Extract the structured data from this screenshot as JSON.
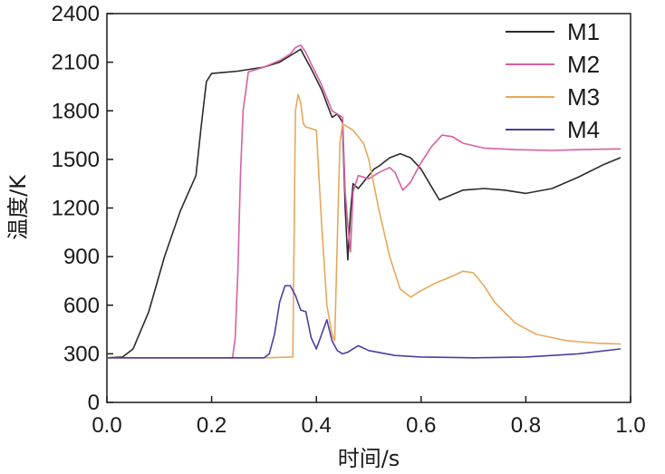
{
  "chart_data": {
    "type": "line",
    "title": "",
    "xlabel": "时间/s",
    "ylabel": "温度/K",
    "xlim": [
      0.0,
      1.0
    ],
    "ylim": [
      0,
      2400
    ],
    "xticks": [
      0.0,
      0.2,
      0.4,
      0.6,
      0.8,
      1.0
    ],
    "xtick_labels": [
      "0.0",
      "0.2",
      "0.4",
      "0.6",
      "0.8",
      "1.0"
    ],
    "yticks": [
      0,
      300,
      600,
      900,
      1200,
      1500,
      1800,
      2100,
      2400
    ],
    "ytick_labels": [
      "0",
      "300",
      "600",
      "900",
      "1200",
      "1500",
      "1800",
      "2100",
      "2400"
    ],
    "grid": false,
    "legend_position": "top-right",
    "series": [
      {
        "name": "M1",
        "color": "#2b2b2b",
        "x": [
          0.0,
          0.03,
          0.05,
          0.08,
          0.11,
          0.14,
          0.17,
          0.18,
          0.19,
          0.2,
          0.25,
          0.3,
          0.33,
          0.35,
          0.37,
          0.38,
          0.39,
          0.41,
          0.43,
          0.44,
          0.45,
          0.455,
          0.46,
          0.465,
          0.47,
          0.48,
          0.49,
          0.5,
          0.51,
          0.52,
          0.54,
          0.56,
          0.58,
          0.6,
          0.62,
          0.635,
          0.65,
          0.68,
          0.72,
          0.76,
          0.8,
          0.85,
          0.9,
          0.95,
          0.98
        ],
        "y": [
          275,
          280,
          330,
          560,
          900,
          1180,
          1400,
          1700,
          1980,
          2030,
          2045,
          2070,
          2100,
          2140,
          2180,
          2120,
          2060,
          1930,
          1760,
          1780,
          1730,
          1200,
          880,
          1170,
          1350,
          1320,
          1360,
          1400,
          1440,
          1460,
          1510,
          1535,
          1510,
          1440,
          1330,
          1250,
          1270,
          1310,
          1320,
          1310,
          1290,
          1320,
          1390,
          1470,
          1510
        ]
      },
      {
        "name": "M2",
        "color": "#d95fa0",
        "x": [
          0.0,
          0.2,
          0.24,
          0.245,
          0.25,
          0.255,
          0.26,
          0.27,
          0.3,
          0.33,
          0.35,
          0.36,
          0.37,
          0.38,
          0.39,
          0.41,
          0.43,
          0.45,
          0.455,
          0.46,
          0.465,
          0.47,
          0.48,
          0.5,
          0.52,
          0.54,
          0.55,
          0.565,
          0.58,
          0.6,
          0.62,
          0.64,
          0.66,
          0.68,
          0.72,
          0.78,
          0.85,
          0.9,
          0.98
        ],
        "y": [
          275,
          275,
          275,
          400,
          800,
          1400,
          1800,
          2040,
          2070,
          2110,
          2150,
          2190,
          2205,
          2160,
          2090,
          1960,
          1800,
          1760,
          1300,
          1100,
          930,
          1300,
          1400,
          1380,
          1420,
          1450,
          1420,
          1310,
          1360,
          1480,
          1580,
          1650,
          1640,
          1600,
          1570,
          1560,
          1555,
          1560,
          1565
        ]
      },
      {
        "name": "M3",
        "color": "#e8a85a",
        "x": [
          0.0,
          0.3,
          0.355,
          0.36,
          0.365,
          0.37,
          0.375,
          0.38,
          0.39,
          0.4,
          0.41,
          0.42,
          0.43,
          0.435,
          0.44,
          0.445,
          0.45,
          0.46,
          0.47,
          0.49,
          0.5,
          0.52,
          0.54,
          0.56,
          0.58,
          0.6,
          0.63,
          0.66,
          0.68,
          0.7,
          0.72,
          0.74,
          0.78,
          0.82,
          0.88,
          0.94,
          0.98
        ],
        "y": [
          275,
          275,
          280,
          1800,
          1900,
          1850,
          1720,
          1700,
          1690,
          1680,
          1100,
          600,
          420,
          380,
          1000,
          1600,
          1720,
          1700,
          1680,
          1600,
          1500,
          1180,
          900,
          700,
          650,
          690,
          740,
          780,
          810,
          800,
          720,
          620,
          490,
          420,
          380,
          365,
          360
        ]
      },
      {
        "name": "M4",
        "color": "#4b3fa0",
        "x": [
          0.0,
          0.2,
          0.3,
          0.31,
          0.32,
          0.33,
          0.34,
          0.35,
          0.36,
          0.37,
          0.38,
          0.39,
          0.4,
          0.41,
          0.42,
          0.43,
          0.44,
          0.45,
          0.46,
          0.48,
          0.5,
          0.55,
          0.6,
          0.7,
          0.8,
          0.9,
          0.98
        ],
        "y": [
          275,
          275,
          275,
          300,
          420,
          620,
          720,
          720,
          660,
          570,
          560,
          400,
          330,
          420,
          510,
          380,
          320,
          300,
          310,
          350,
          320,
          290,
          280,
          275,
          280,
          300,
          330
        ]
      }
    ]
  }
}
